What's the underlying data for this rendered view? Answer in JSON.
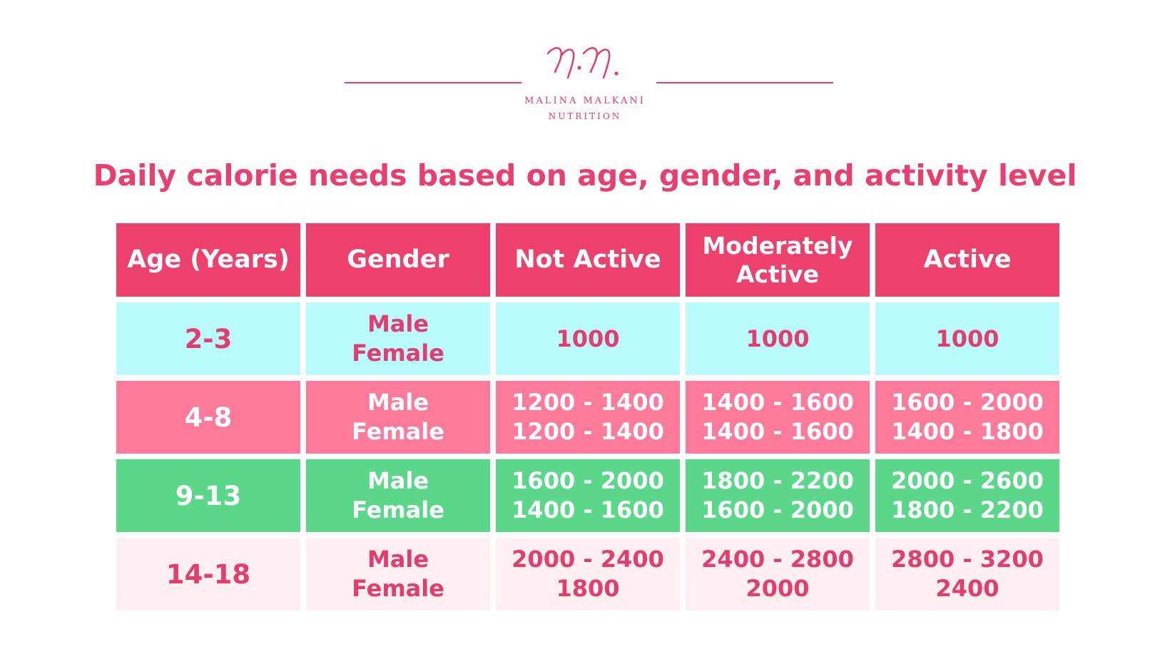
{
  "brand": {
    "name": "Malina Malkani",
    "tagline": "Nutrition",
    "accent_color": "#e23d6e"
  },
  "title": "Daily calorie needs based on age, gender, and activity level",
  "table": {
    "headers": [
      "Age (Years)",
      "Gender",
      "Not Active",
      "Moderately Active",
      "Active"
    ],
    "header_color": "#ee406d",
    "rows": [
      {
        "age": "2-3",
        "genders": [
          "Male",
          "Female"
        ],
        "not_active": [
          "1000"
        ],
        "moderately_active": [
          "1000"
        ],
        "active": [
          "1000"
        ],
        "color": "#b9fbfc"
      },
      {
        "age": "4-8",
        "genders": [
          "Male",
          "Female"
        ],
        "not_active": [
          "1200 - 1400",
          "1200 - 1400"
        ],
        "moderately_active": [
          "1400 - 1600",
          "1400 - 1600"
        ],
        "active": [
          "1600 - 2000",
          "1400 - 1800"
        ],
        "color": "#fe7a9b"
      },
      {
        "age": "9-13",
        "genders": [
          "Male",
          "Female"
        ],
        "not_active": [
          "1600 - 2000",
          "1400 - 1600"
        ],
        "moderately_active": [
          "1800 - 2200",
          "1600 - 2000"
        ],
        "active": [
          "2000 - 2600",
          "1800 - 2200"
        ],
        "color": "#5bd78a"
      },
      {
        "age": "14-18",
        "genders": [
          "Male",
          "Female"
        ],
        "not_active": [
          "2000 - 2400",
          "1800"
        ],
        "moderately_active": [
          "2400 - 2800",
          "2000"
        ],
        "active": [
          "2800 - 3200",
          "2400"
        ],
        "color": "#fef0f1"
      }
    ]
  }
}
